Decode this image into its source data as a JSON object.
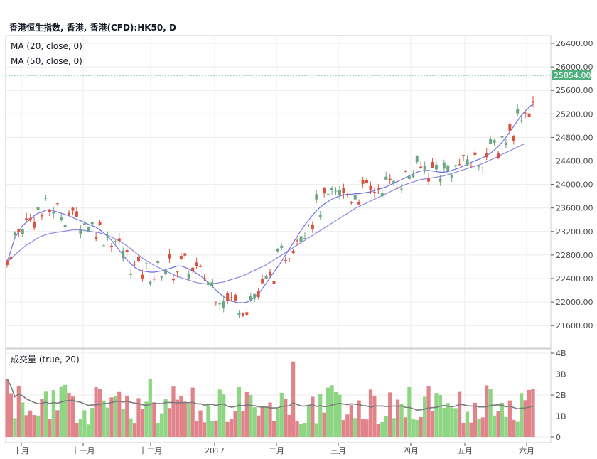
{
  "header": {
    "title": "香港恒生指数, 香港, 香港(CFD):HK50, D"
  },
  "price_pane": {
    "ma_legends": [
      "MA (20, close, 0)",
      "MA (50, close, 0)"
    ],
    "y_ticks": [
      "26400.00",
      "26000.00",
      "25600.00",
      "25200.00",
      "24800.00",
      "24400.00",
      "24000.00",
      "23600.00",
      "23200.00",
      "22800.00",
      "22400.00",
      "22000.00",
      "21600.00"
    ],
    "last_price_label": "25854.00"
  },
  "volume_pane": {
    "legend": "成交量 (true, 20)",
    "y_ticks": [
      "4B",
      "3B",
      "2B",
      "1B",
      "0"
    ]
  },
  "x_axis": {
    "labels": [
      "十月",
      "十一月",
      "十二月",
      "2017",
      "二月",
      "三月",
      "四月",
      "五月",
      "六月"
    ]
  },
  "colors": {
    "up": "#6ba583",
    "down": "#d75442",
    "vol_up": "#8ed684",
    "vol_down": "#e0838a",
    "ma20": "#6f6fe9",
    "ma50": "#8b86e6",
    "vol_ma": "#7b7b7b",
    "last_price_bg": "#4caf7d",
    "grid": "#ececec"
  },
  "chart_data": [
    {
      "type": "candlestick",
      "title": "香港恒生指数, 香港, 香港(CFD):HK50, D",
      "ylim": [
        21400,
        26500
      ],
      "x_labels": [
        "十月",
        "十一月",
        "十二月",
        "2017",
        "二月",
        "三月",
        "四月",
        "五月",
        "六月"
      ],
      "last_price": 25854,
      "series": [
        {
          "name": "MA (20, close, 0)",
          "values": [
            22800,
            23000,
            23200,
            23300,
            23400,
            23450,
            23500,
            23560,
            23600,
            23620,
            23650,
            23660,
            23640,
            23620,
            23600,
            23580,
            23560,
            23530,
            23500,
            23480,
            23450,
            23420,
            23400,
            23370,
            23330,
            23280,
            23220,
            23160,
            23080,
            23000,
            22920,
            22840,
            22780,
            22720,
            22680,
            22660,
            22650,
            22640,
            22640,
            22650,
            22660,
            22680,
            22700,
            22720,
            22740,
            22740,
            22720,
            22690,
            22660,
            22620,
            22580,
            22530,
            22470,
            22410,
            22350,
            22290,
            22240,
            22200,
            22170,
            22150,
            22140,
            22140,
            22150,
            22180,
            22230,
            22290,
            22370,
            22460,
            22550,
            22640,
            22730,
            22820,
            22920,
            23020,
            23120,
            23220,
            23320,
            23410,
            23490,
            23570,
            23640,
            23700,
            23750,
            23790,
            23830,
            23860,
            23880,
            23900,
            23910,
            23910,
            23920,
            23920,
            23930,
            23940,
            23950,
            23970,
            23990,
            24010,
            24030,
            24060,
            24090,
            24120,
            24150,
            24180,
            24210,
            24240,
            24270,
            24290,
            24300,
            24300,
            24290,
            24280,
            24270,
            24270,
            24280,
            24300,
            24320,
            24340,
            24370,
            24400,
            24430,
            24460,
            24480,
            24510,
            24540,
            24580,
            24630,
            24690,
            24760,
            24840,
            24930,
            25020,
            25110,
            25200,
            25270,
            25330,
            25380
          ]
        },
        {
          "name": "MA (50, close, 0)",
          "values": [
            22800,
            22860,
            22920,
            22980,
            23030,
            23080,
            23120,
            23160,
            23200,
            23230,
            23250,
            23270,
            23280,
            23290,
            23300,
            23310,
            23320,
            23330,
            23330,
            23330,
            23320,
            23310,
            23300,
            23290,
            23280,
            23260,
            23240,
            23210,
            23180,
            23150,
            23110,
            23070,
            23020,
            22970,
            22920,
            22870,
            22830,
            22790,
            22750,
            22720,
            22690,
            22660,
            22630,
            22600,
            22570,
            22550,
            22530,
            22510,
            22490,
            22470,
            22460,
            22450,
            22450,
            22450,
            22460,
            22470,
            22480,
            22500,
            22520,
            22540,
            22560,
            22580,
            22610,
            22640,
            22670,
            22700,
            22730,
            22760,
            22800,
            22840,
            22880,
            22920,
            22960,
            23000,
            23040,
            23080,
            23120,
            23160,
            23200,
            23240,
            23280,
            23320,
            23360,
            23400,
            23440,
            23480,
            23520,
            23560,
            23600,
            23640,
            23680,
            23710,
            23740,
            23770,
            23800,
            23830,
            23860,
            23890,
            23920,
            23950,
            23980,
            24010,
            24040,
            24070,
            24090,
            24110,
            24130,
            24150,
            24160,
            24170,
            24180,
            24190,
            24200,
            24210,
            24230,
            24250,
            24270,
            24290,
            24310,
            24330,
            24350,
            24370,
            24390,
            24410,
            24440,
            24470,
            24500,
            24530,
            24560,
            24590,
            24620,
            24650,
            24680,
            24710,
            24740
          ]
        }
      ]
    },
    {
      "type": "bar",
      "title": "成交量 (true, 20)",
      "ylim": [
        0,
        4000000000
      ],
      "y_ticks": [
        "4B",
        "3B",
        "2B",
        "1B",
        "0"
      ],
      "series": [
        {
          "name": "成交量 (true, 20)"
        }
      ]
    }
  ]
}
